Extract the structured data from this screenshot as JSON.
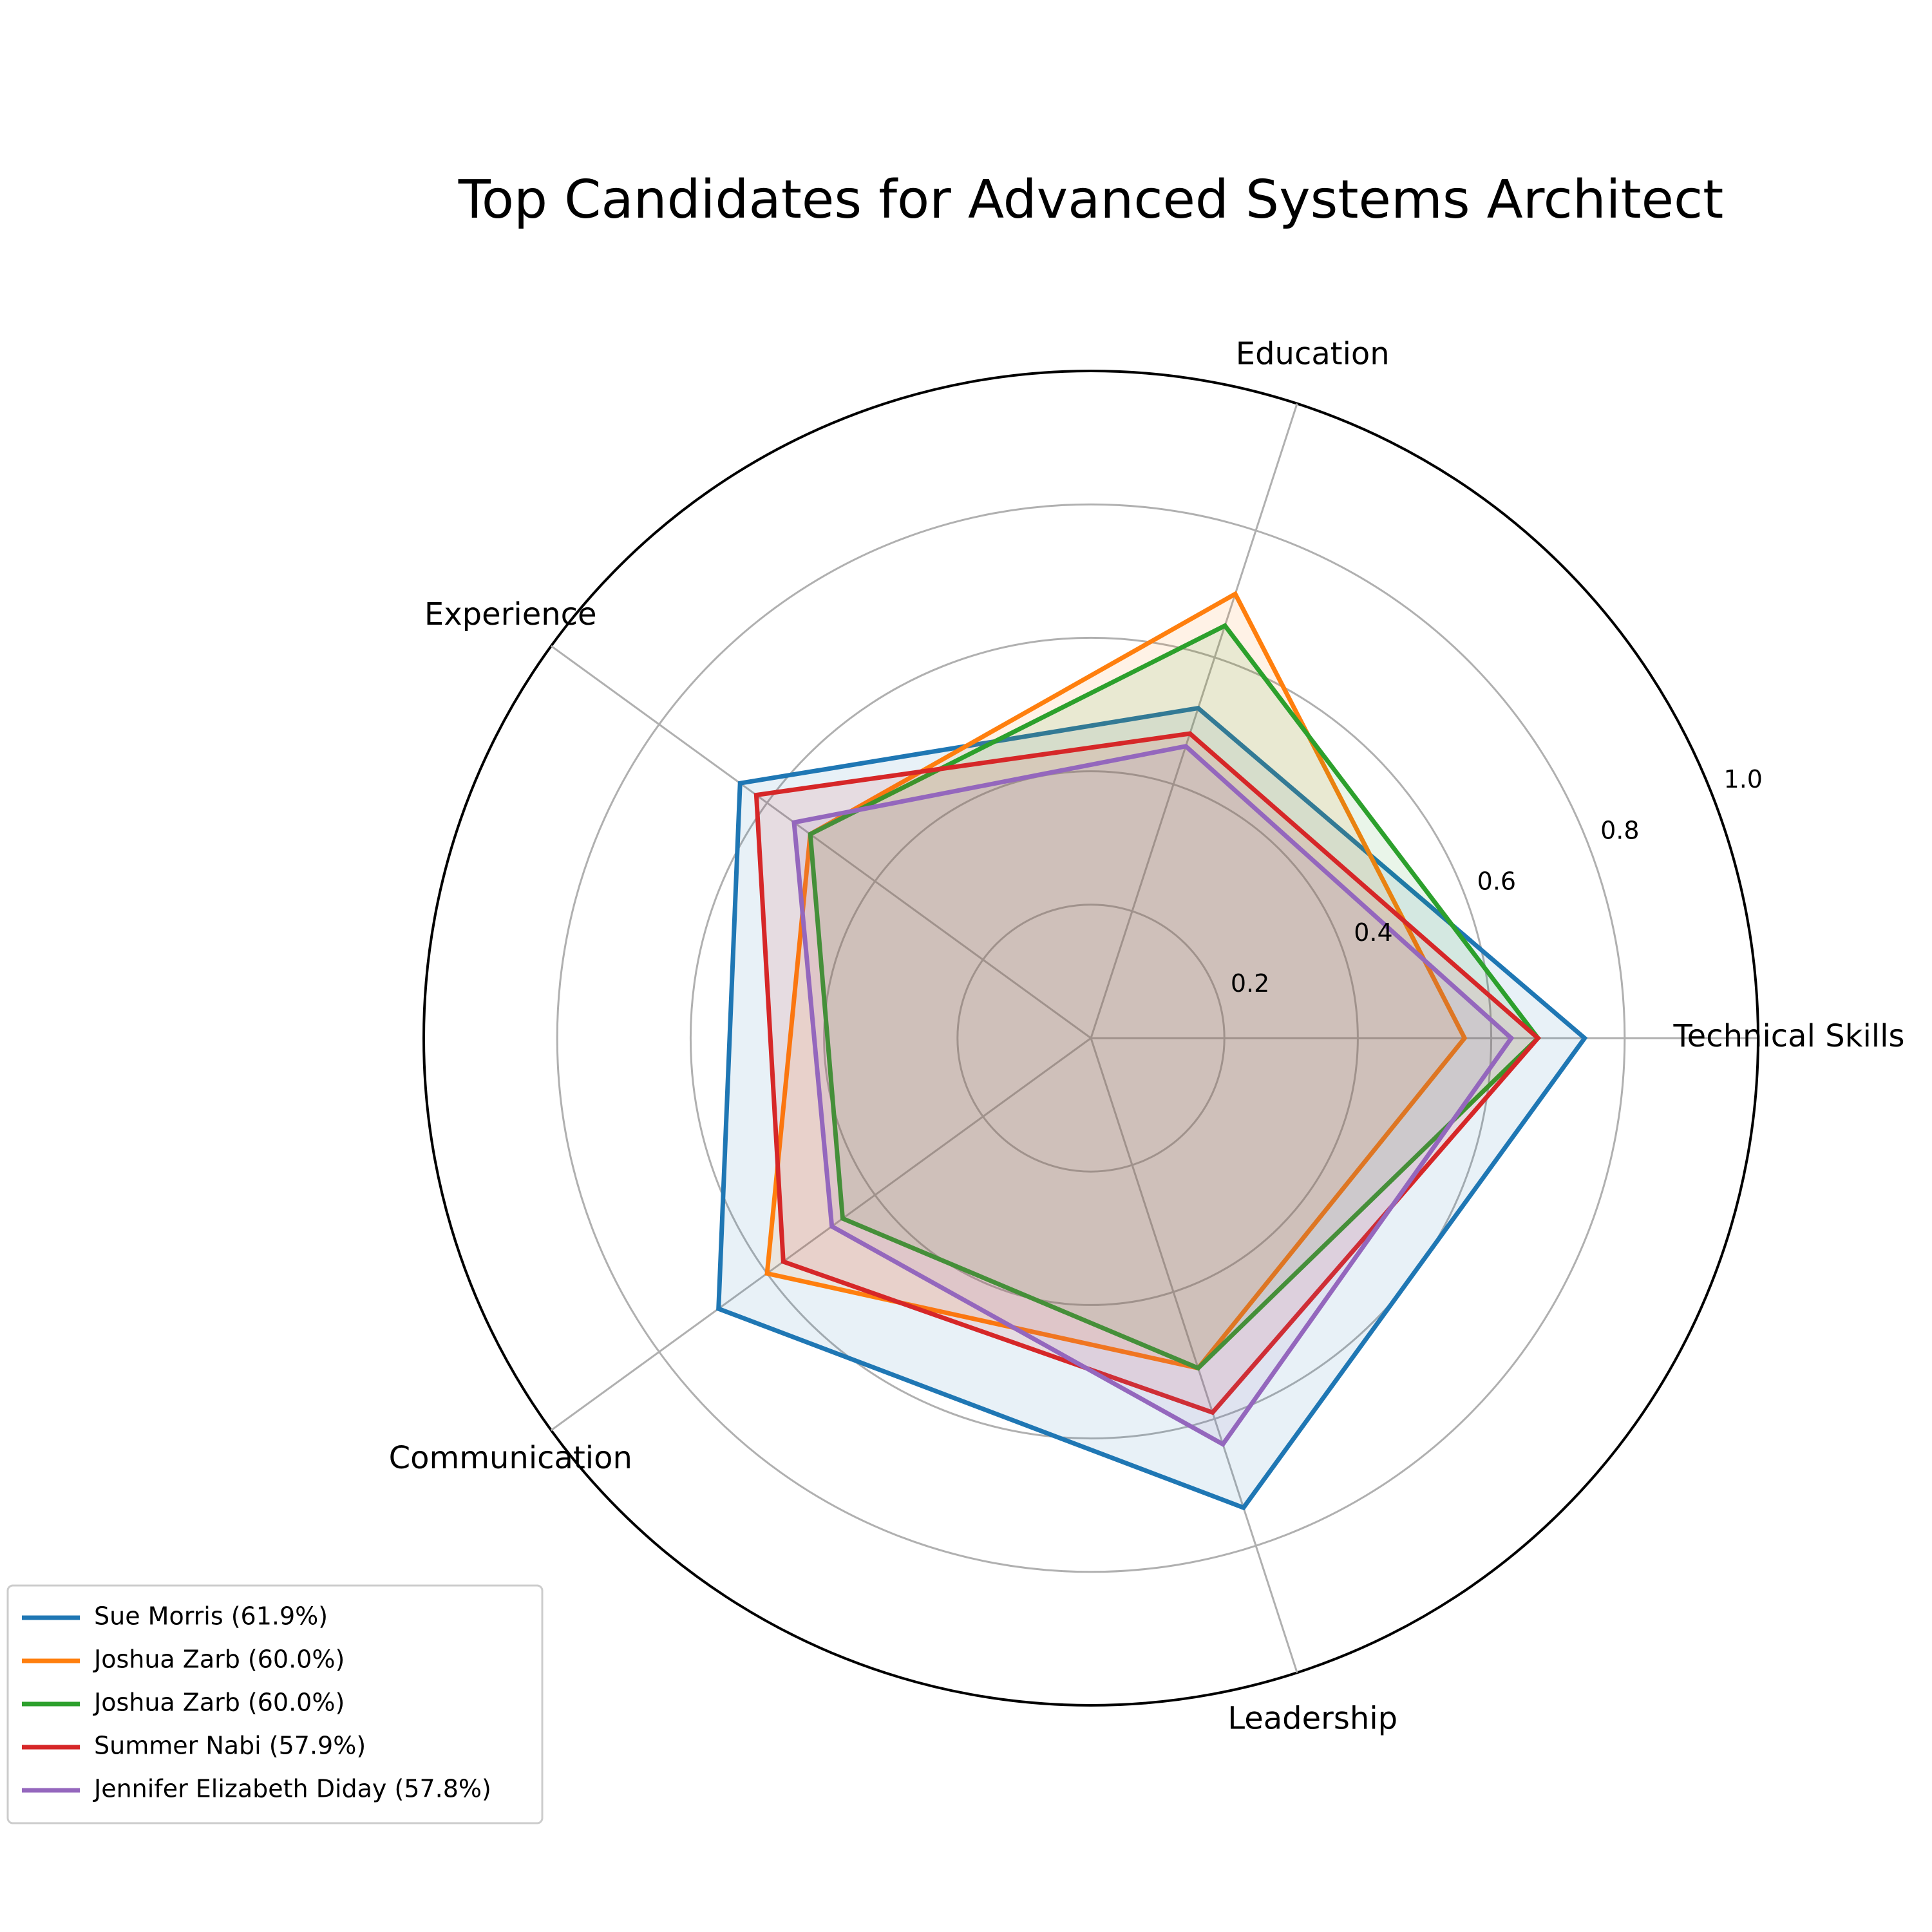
{
  "chart_data": {
    "type": "radar",
    "title": "Top Candidates for Advanced Systems Architect",
    "categories": [
      "Technical Skills",
      "Education",
      "Experience",
      "Communication",
      "Leadership"
    ],
    "rlim": [
      0,
      1.0
    ],
    "rticks": [
      0.2,
      0.4,
      0.6,
      0.8,
      1.0
    ],
    "rtick_labels": [
      "0.2",
      "0.4",
      "0.6",
      "0.8",
      "1.0"
    ],
    "grid": true,
    "legend_position": "lower-left",
    "series": [
      {
        "name": "Sue Morris (61.9%)",
        "color": "#1f77b4",
        "values": [
          0.74,
          0.52,
          0.65,
          0.69,
          0.74
        ]
      },
      {
        "name": "Joshua Zarb (60.0%)",
        "color": "#ff7f0e",
        "values": [
          0.56,
          0.7,
          0.52,
          0.6,
          0.52
        ]
      },
      {
        "name": "Joshua Zarb (60.0%)",
        "color": "#2ca02c",
        "values": [
          0.67,
          0.65,
          0.52,
          0.46,
          0.52
        ]
      },
      {
        "name": "Summer Nabi (57.9%)",
        "color": "#d62728",
        "values": [
          0.67,
          0.48,
          0.62,
          0.57,
          0.59
        ]
      },
      {
        "name": "Jennifer Elizabeth Diday (57.8%)",
        "color": "#9467bd",
        "values": [
          0.63,
          0.46,
          0.55,
          0.48,
          0.64
        ]
      }
    ]
  }
}
